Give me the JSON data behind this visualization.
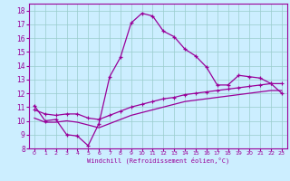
{
  "xlabel": "Windchill (Refroidissement éolien,°C)",
  "xlim": [
    -0.5,
    23.5
  ],
  "ylim": [
    8,
    18.5
  ],
  "xticks": [
    0,
    1,
    2,
    3,
    4,
    5,
    6,
    7,
    8,
    9,
    10,
    11,
    12,
    13,
    14,
    15,
    16,
    17,
    18,
    19,
    20,
    21,
    22,
    23
  ],
  "yticks": [
    8,
    9,
    10,
    11,
    12,
    13,
    14,
    15,
    16,
    17,
    18
  ],
  "bg_color": "#cceeff",
  "grid_color": "#99cccc",
  "line_color": "#990099",
  "line1_x": [
    0,
    1,
    2,
    3,
    4,
    5,
    6,
    7,
    8,
    9,
    10,
    11,
    12,
    13,
    14,
    15,
    16,
    17,
    18,
    19,
    20,
    21,
    22,
    23
  ],
  "line1_y": [
    11.1,
    10.0,
    10.1,
    9.0,
    8.9,
    8.2,
    9.8,
    13.2,
    14.6,
    17.1,
    17.8,
    17.6,
    16.5,
    16.1,
    15.2,
    14.7,
    13.9,
    12.6,
    12.6,
    13.3,
    13.2,
    13.1,
    12.7,
    12.0
  ],
  "line2_x": [
    0,
    1,
    2,
    3,
    4,
    5,
    6,
    7,
    8,
    9,
    10,
    11,
    12,
    13,
    14,
    15,
    16,
    17,
    18,
    19,
    20,
    21,
    22,
    23
  ],
  "line2_y": [
    10.8,
    10.5,
    10.4,
    10.5,
    10.5,
    10.2,
    10.1,
    10.4,
    10.7,
    11.0,
    11.2,
    11.4,
    11.6,
    11.7,
    11.9,
    12.0,
    12.1,
    12.2,
    12.3,
    12.4,
    12.5,
    12.6,
    12.7,
    12.7
  ],
  "line3_x": [
    0,
    1,
    2,
    3,
    4,
    5,
    6,
    7,
    8,
    9,
    10,
    11,
    12,
    13,
    14,
    15,
    16,
    17,
    18,
    19,
    20,
    21,
    22,
    23
  ],
  "line3_y": [
    10.2,
    9.9,
    9.9,
    10.0,
    9.9,
    9.7,
    9.5,
    9.8,
    10.1,
    10.4,
    10.6,
    10.8,
    11.0,
    11.2,
    11.4,
    11.5,
    11.6,
    11.7,
    11.8,
    11.9,
    12.0,
    12.1,
    12.2,
    12.2
  ]
}
